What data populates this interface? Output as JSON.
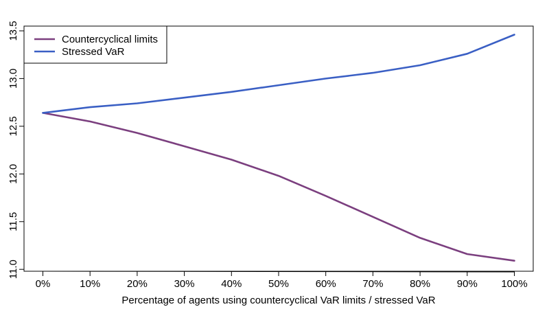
{
  "chart_data": {
    "type": "line",
    "title": "",
    "xlabel": "Percentage of agents using countercyclical VaR limits / stressed VaR",
    "ylabel": "",
    "categories": [
      "0%",
      "10%",
      "20%",
      "30%",
      "40%",
      "50%",
      "60%",
      "70%",
      "80%",
      "90%",
      "100%"
    ],
    "x": [
      0,
      10,
      20,
      30,
      40,
      50,
      60,
      70,
      80,
      90,
      100
    ],
    "xlim": [
      -4,
      104
    ],
    "ylim": [
      10.98,
      13.55
    ],
    "yticks": [
      11.0,
      11.5,
      12.0,
      12.5,
      13.0,
      13.5
    ],
    "ytick_labels": [
      "11.0",
      "11.5",
      "12.0",
      "12.5",
      "13.0",
      "13.5"
    ],
    "grid": false,
    "legend_position": "top-left",
    "series": [
      {
        "name": "Countercyclical limits",
        "color": "#7b3f7f",
        "values": [
          12.64,
          12.55,
          12.43,
          12.29,
          12.15,
          11.98,
          11.77,
          11.55,
          11.33,
          11.16,
          11.09
        ]
      },
      {
        "name": "Stressed VaR",
        "color": "#3a5fc4",
        "values": [
          12.64,
          12.7,
          12.74,
          12.8,
          12.86,
          12.93,
          13.0,
          13.06,
          13.14,
          13.26,
          13.46
        ]
      }
    ]
  }
}
